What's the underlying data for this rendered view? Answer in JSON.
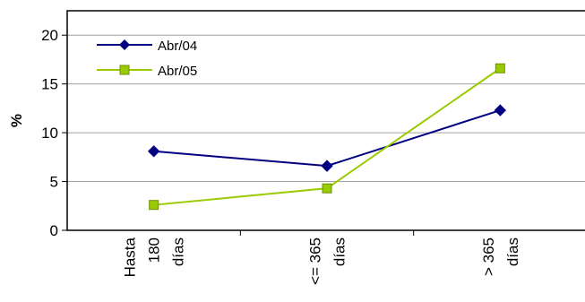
{
  "chart_data": {
    "type": "line",
    "title": "",
    "xlabel": "",
    "ylabel": "%",
    "ylim": [
      0,
      22.5
    ],
    "yticks": [
      0,
      5,
      10,
      15,
      20
    ],
    "categories": [
      [
        "Hasta",
        "180",
        "días"
      ],
      [
        "<= 365",
        "días"
      ],
      [
        "> 365",
        "días"
      ]
    ],
    "series": [
      {
        "name": "Abr/04",
        "values": [
          8.1,
          6.6,
          12.3
        ],
        "color": "#000080",
        "marker": "diamond"
      },
      {
        "name": "Abr/05",
        "values": [
          2.6,
          4.3,
          16.6
        ],
        "color": "#99CC00",
        "marker": "square"
      }
    ],
    "grid": true,
    "legend": "top-left"
  }
}
